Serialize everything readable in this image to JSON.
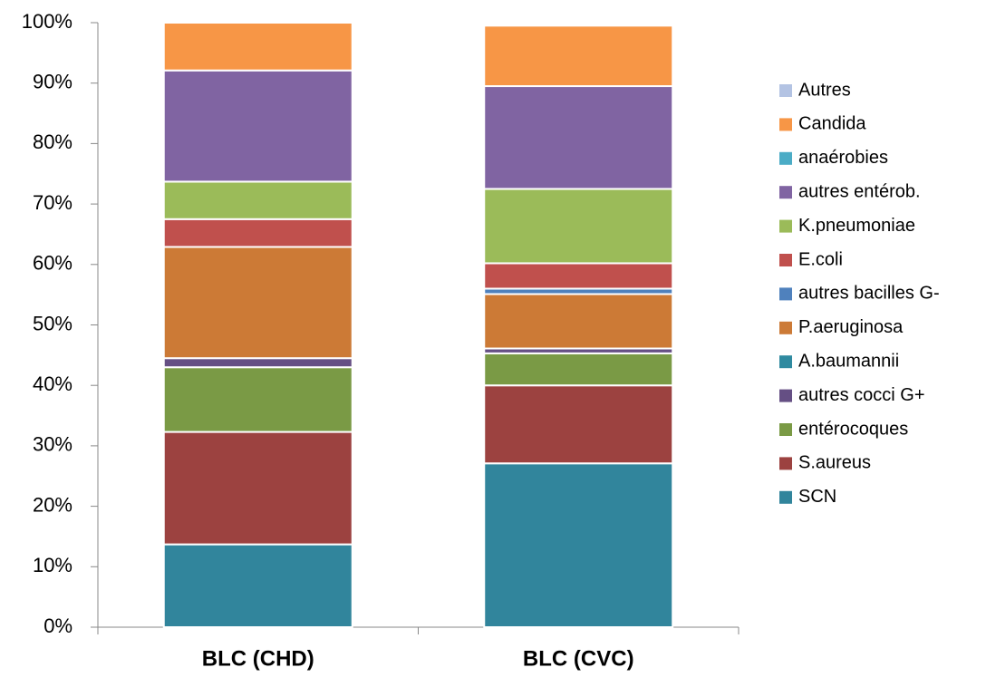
{
  "chart_data": {
    "type": "stacked-bar",
    "categories": [
      "BLC (CHD)",
      "BLC (CVC)"
    ],
    "ylim": [
      0,
      100
    ],
    "yticks": [
      {
        "value": 0,
        "label": "0%"
      },
      {
        "value": 10,
        "label": "10%"
      },
      {
        "value": 20,
        "label": "20%"
      },
      {
        "value": 30,
        "label": "30%"
      },
      {
        "value": 40,
        "label": "40%"
      },
      {
        "value": 50,
        "label": "50%"
      },
      {
        "value": 60,
        "label": "60%"
      },
      {
        "value": 70,
        "label": "70%"
      },
      {
        "value": 80,
        "label": "80%"
      },
      {
        "value": 90,
        "label": "90%"
      },
      {
        "value": 100,
        "label": "100%"
      }
    ],
    "legend": "right",
    "series": [
      {
        "name": "SCN",
        "color": "#31859c",
        "values": [
          13.7,
          27.1
        ]
      },
      {
        "name": "S.aureus",
        "color": "#9c4240",
        "values": [
          18.6,
          12.9
        ]
      },
      {
        "name": "entérocoques",
        "color": "#7a9a45",
        "values": [
          10.7,
          5.3
        ]
      },
      {
        "name": "autres cocci G+",
        "color": "#654f84",
        "values": [
          1.5,
          0.8
        ]
      },
      {
        "name": "A.baumannii",
        "color": "#2f8aa0",
        "values": [
          0,
          0
        ]
      },
      {
        "name": "P.aeruginosa",
        "color": "#cc7a36",
        "values": [
          18.4,
          9.0
        ]
      },
      {
        "name": "autres bacilles G-",
        "color": "#4f81bd",
        "values": [
          0,
          0.9
        ]
      },
      {
        "name": "E.coli",
        "color": "#c0504d",
        "values": [
          4.6,
          4.2
        ]
      },
      {
        "name": "K.pneumoniae",
        "color": "#9bbb59",
        "values": [
          6.2,
          12.3
        ]
      },
      {
        "name": "autres entérob.",
        "color": "#8064a2",
        "values": [
          18.4,
          17.0
        ]
      },
      {
        "name": "anaérobies",
        "color": "#4bacc6",
        "values": [
          0,
          0
        ]
      },
      {
        "name": "Candida",
        "color": "#f79646",
        "values": [
          7.9,
          10.0
        ]
      },
      {
        "name": "Autres",
        "color": "#b3c3e3",
        "values": [
          0,
          0
        ]
      }
    ]
  }
}
